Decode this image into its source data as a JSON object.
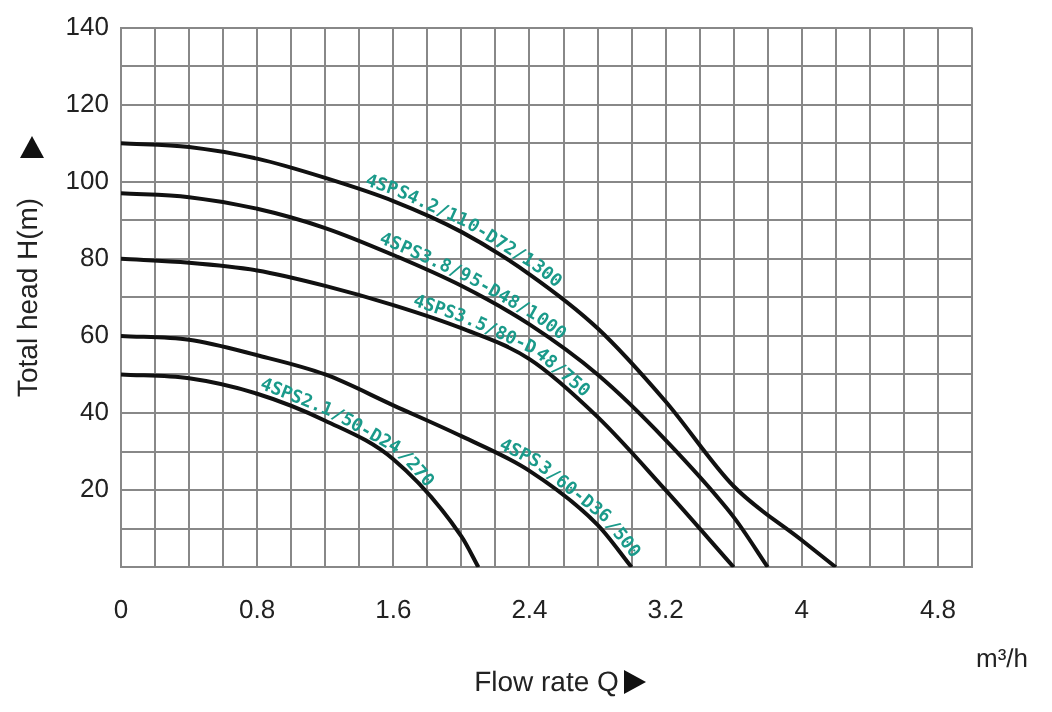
{
  "chart_data": {
    "type": "line",
    "xlabel": "Flow rate Q",
    "ylabel": "Total head H(m)",
    "annotations": [
      "m³/h"
    ],
    "xlim": [
      0,
      5
    ],
    "ylim": [
      0,
      140
    ],
    "xticks": [
      0,
      {
        "value": 0.2,
        "label": null
      },
      {
        "value": 0.4,
        "label": null
      },
      {
        "value": 0.6,
        "label": null
      },
      0.8,
      {
        "value": 1.0,
        "label": null
      },
      {
        "value": 1.2,
        "label": null
      },
      {
        "value": 1.4,
        "label": null
      },
      1.6,
      {
        "value": 1.8,
        "label": null
      },
      {
        "value": 2.0,
        "label": null
      },
      {
        "value": 2.2,
        "label": null
      },
      2.4,
      {
        "value": 2.6,
        "label": null
      },
      {
        "value": 2.8,
        "label": null
      },
      {
        "value": 3.0,
        "label": null
      },
      3.2,
      {
        "value": 3.4,
        "label": null
      },
      {
        "value": 3.6,
        "label": null
      },
      {
        "value": 3.8,
        "label": null
      },
      4,
      {
        "value": 4.2,
        "label": null
      },
      {
        "value": 4.4,
        "label": null
      },
      {
        "value": 4.6,
        "label": null
      },
      4.8,
      {
        "value": 5.0,
        "label": null
      }
    ],
    "yticks": [
      {
        "value": 0,
        "label": null
      },
      {
        "value": 10,
        "label": null
      },
      20,
      {
        "value": 30,
        "label": null
      },
      40,
      {
        "value": 50,
        "label": null
      },
      60,
      {
        "value": 70,
        "label": null
      },
      80,
      {
        "value": 90,
        "label": null
      },
      100,
      {
        "value": 110,
        "label": null
      },
      120,
      {
        "value": 130,
        "label": null
      },
      140
    ],
    "grid": true,
    "legend": false,
    "marker": "none",
    "line_style": "solid",
    "series": [
      {
        "name": "4SPS4.2/110-D72/1300",
        "color": "#111111",
        "x": [
          0,
          0.4,
          0.8,
          1.2,
          1.6,
          2.0,
          2.4,
          2.8,
          3.2,
          3.6,
          4.0,
          4.2
        ],
        "values": [
          110,
          109,
          106,
          101,
          95,
          87,
          76,
          62,
          43,
          21,
          7,
          0
        ]
      },
      {
        "name": "4SPS3.8/95-D48/1000",
        "color": "#111111",
        "x": [
          0,
          0.4,
          0.8,
          1.2,
          1.6,
          2.0,
          2.4,
          2.8,
          3.2,
          3.6,
          3.8
        ],
        "values": [
          97,
          96,
          93,
          88,
          81,
          73,
          63,
          50,
          33,
          13,
          0
        ]
      },
      {
        "name": "4SPS3.5/80-D48/750",
        "color": "#111111",
        "x": [
          0,
          0.4,
          0.8,
          1.2,
          1.6,
          2.0,
          2.4,
          2.8,
          3.2,
          3.6
        ],
        "values": [
          80,
          79,
          77,
          73,
          68,
          62,
          54,
          39,
          20,
          0
        ]
      },
      {
        "name": "4SPS3/60-D36/500",
        "color": "#111111",
        "x": [
          0,
          0.4,
          0.8,
          1.2,
          1.6,
          2.0,
          2.4,
          2.8,
          3.0
        ],
        "values": [
          60,
          59,
          55,
          50,
          42,
          34,
          25,
          11,
          0
        ]
      },
      {
        "name": "4SPS2.1/50-D24/270",
        "color": "#111111",
        "x": [
          0,
          0.4,
          0.8,
          1.2,
          1.6,
          2.0,
          2.1
        ],
        "values": [
          50,
          49,
          45,
          38,
          28,
          8,
          0
        ]
      }
    ]
  }
}
